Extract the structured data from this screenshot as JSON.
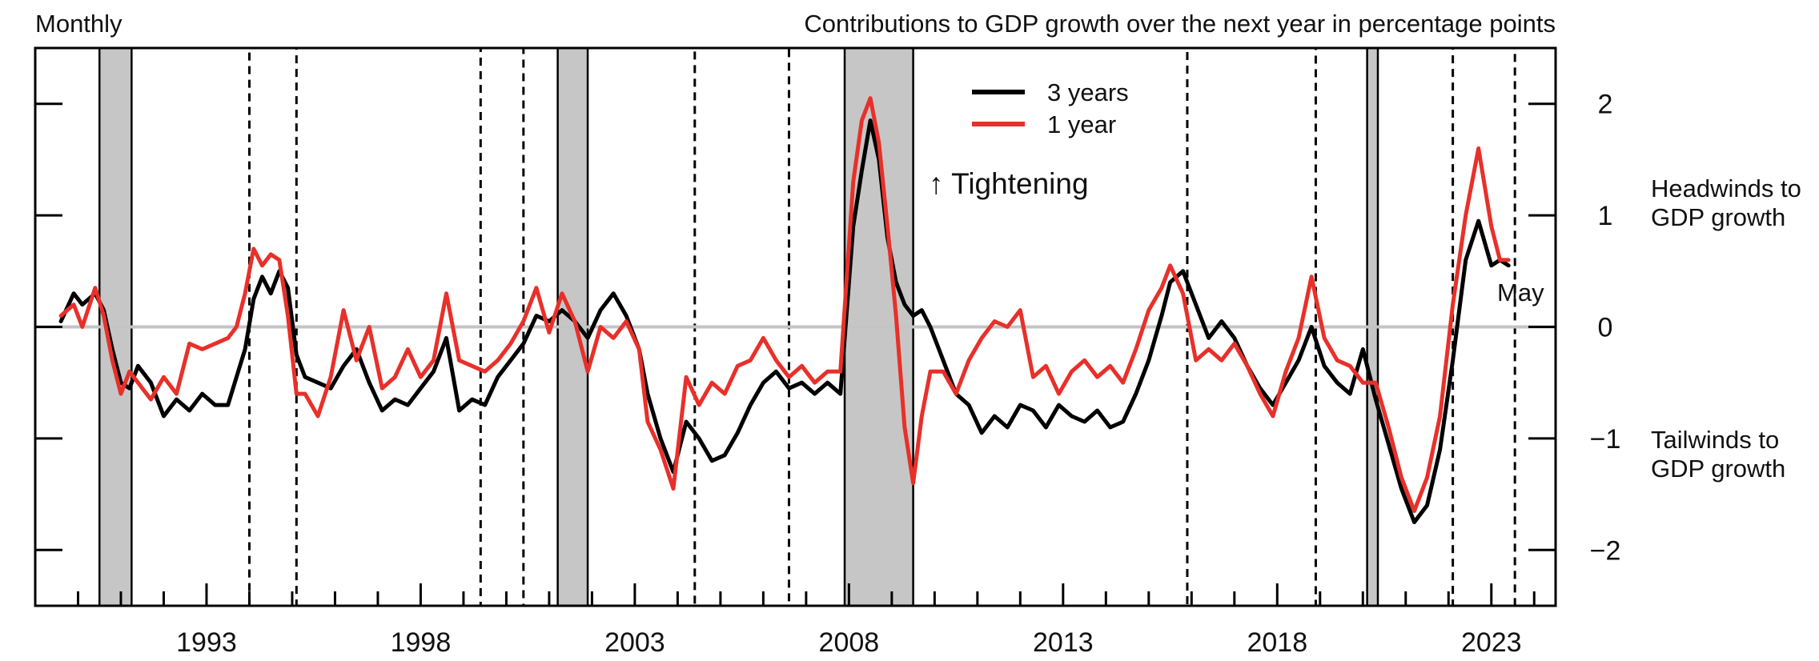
{
  "chart_data": {
    "type": "line",
    "frequency_label": "Monthly",
    "title": "Contributions to GDP growth over the next year in percentage points",
    "ylim": [
      -2.5,
      2.5
    ],
    "xlim": [
      1989.0,
      2024.5
    ],
    "yticks": [
      2,
      1,
      0,
      -1,
      -2
    ],
    "ytick_labels": [
      "2",
      "1",
      "0",
      "−1",
      "−2"
    ],
    "xtick_labels": [
      "1993",
      "1998",
      "2003",
      "2008",
      "2013",
      "2018",
      "2023"
    ],
    "xtick_values": [
      1993,
      1998,
      2003,
      2008,
      2013,
      2018,
      2023
    ],
    "annotations": {
      "tightening": "↑ Tightening",
      "headwinds_line1": "Headwinds to",
      "headwinds_line2": "GDP growth",
      "tailwinds_line1": "Tailwinds to",
      "tailwinds_line2": "GDP growth",
      "end_label": "May"
    },
    "recessions": [
      [
        1990.5,
        1991.25
      ],
      [
        2001.2,
        2001.9
      ],
      [
        2007.9,
        2009.5
      ],
      [
        2020.1,
        2020.35
      ]
    ],
    "tightening_periods": [
      [
        1994.0,
        1995.1
      ],
      [
        1999.4,
        2000.4
      ],
      [
        2004.4,
        2006.6
      ],
      [
        2015.9,
        2018.9
      ],
      [
        2022.1,
        2023.55
      ]
    ],
    "series": [
      {
        "name": "3 years",
        "color": "#000000",
        "x": [
          1989.6,
          1989.9,
          1990.1,
          1990.4,
          1990.6,
          1990.8,
          1991.0,
          1991.2,
          1991.4,
          1991.7,
          1992.0,
          1992.3,
          1992.6,
          1992.9,
          1993.2,
          1993.5,
          1993.7,
          1993.9,
          1994.1,
          1994.3,
          1994.5,
          1994.7,
          1994.9,
          1995.1,
          1995.3,
          1995.6,
          1995.9,
          1996.2,
          1996.5,
          1996.8,
          1997.1,
          1997.4,
          1997.7,
          1998.0,
          1998.3,
          1998.6,
          1998.9,
          1999.2,
          1999.5,
          1999.8,
          2000.1,
          2000.4,
          2000.7,
          2001.0,
          2001.3,
          2001.6,
          2001.9,
          2002.2,
          2002.5,
          2002.8,
          2003.1,
          2003.3,
          2003.6,
          2003.9,
          2004.2,
          2004.5,
          2004.8,
          2005.1,
          2005.4,
          2005.7,
          2006.0,
          2006.3,
          2006.6,
          2006.9,
          2007.2,
          2007.5,
          2007.8,
          2008.1,
          2008.3,
          2008.5,
          2008.7,
          2008.9,
          2009.1,
          2009.3,
          2009.5,
          2009.7,
          2009.9,
          2010.2,
          2010.5,
          2010.8,
          2011.1,
          2011.4,
          2011.7,
          2012.0,
          2012.3,
          2012.6,
          2012.9,
          2013.2,
          2013.5,
          2013.8,
          2014.1,
          2014.4,
          2014.7,
          2015.0,
          2015.3,
          2015.5,
          2015.8,
          2016.1,
          2016.4,
          2016.7,
          2017.0,
          2017.3,
          2017.6,
          2017.9,
          2018.2,
          2018.5,
          2018.8,
          2019.1,
          2019.4,
          2019.7,
          2020.0,
          2020.3,
          2020.6,
          2020.9,
          2021.2,
          2021.5,
          2021.8,
          2022.1,
          2022.4,
          2022.7,
          2023.0,
          2023.2,
          2023.4
        ],
        "values": [
          0.05,
          0.3,
          0.2,
          0.3,
          0.15,
          -0.2,
          -0.5,
          -0.55,
          -0.35,
          -0.5,
          -0.8,
          -0.65,
          -0.75,
          -0.6,
          -0.7,
          -0.7,
          -0.45,
          -0.2,
          0.25,
          0.45,
          0.3,
          0.5,
          0.35,
          -0.25,
          -0.45,
          -0.5,
          -0.55,
          -0.35,
          -0.2,
          -0.5,
          -0.75,
          -0.65,
          -0.7,
          -0.55,
          -0.4,
          -0.1,
          -0.75,
          -0.65,
          -0.7,
          -0.45,
          -0.3,
          -0.15,
          0.1,
          0.05,
          0.15,
          0.05,
          -0.1,
          0.15,
          0.3,
          0.1,
          -0.2,
          -0.6,
          -1.0,
          -1.3,
          -0.85,
          -1.0,
          -1.2,
          -1.15,
          -0.95,
          -0.7,
          -0.5,
          -0.4,
          -0.55,
          -0.5,
          -0.6,
          -0.5,
          -0.6,
          0.9,
          1.4,
          1.85,
          1.5,
          0.8,
          0.4,
          0.2,
          0.1,
          0.15,
          0.0,
          -0.3,
          -0.6,
          -0.7,
          -0.95,
          -0.8,
          -0.9,
          -0.7,
          -0.75,
          -0.9,
          -0.7,
          -0.8,
          -0.85,
          -0.75,
          -0.9,
          -0.85,
          -0.6,
          -0.3,
          0.1,
          0.4,
          0.5,
          0.2,
          -0.1,
          0.05,
          -0.1,
          -0.35,
          -0.55,
          -0.7,
          -0.5,
          -0.3,
          0.0,
          -0.35,
          -0.5,
          -0.6,
          -0.2,
          -0.65,
          -1.05,
          -1.45,
          -1.75,
          -1.6,
          -1.1,
          -0.3,
          0.6,
          0.95,
          0.55,
          0.6,
          0.55
        ]
      },
      {
        "name": "1 year",
        "color": "#e8302a",
        "x": [
          1989.6,
          1989.9,
          1990.1,
          1990.4,
          1990.6,
          1990.8,
          1991.0,
          1991.2,
          1991.4,
          1991.7,
          1992.0,
          1992.3,
          1992.6,
          1992.9,
          1993.2,
          1993.5,
          1993.7,
          1993.9,
          1994.1,
          1994.3,
          1994.5,
          1994.7,
          1994.9,
          1995.1,
          1995.3,
          1995.6,
          1995.9,
          1996.2,
          1996.5,
          1996.8,
          1997.1,
          1997.4,
          1997.7,
          1998.0,
          1998.3,
          1998.6,
          1998.9,
          1999.2,
          1999.5,
          1999.8,
          2000.1,
          2000.4,
          2000.7,
          2001.0,
          2001.3,
          2001.6,
          2001.9,
          2002.2,
          2002.5,
          2002.8,
          2003.1,
          2003.3,
          2003.6,
          2003.9,
          2004.2,
          2004.5,
          2004.8,
          2005.1,
          2005.4,
          2005.7,
          2006.0,
          2006.3,
          2006.6,
          2006.9,
          2007.2,
          2007.5,
          2007.8,
          2008.1,
          2008.3,
          2008.5,
          2008.7,
          2008.9,
          2009.1,
          2009.3,
          2009.5,
          2009.7,
          2009.9,
          2010.2,
          2010.5,
          2010.8,
          2011.1,
          2011.4,
          2011.7,
          2012.0,
          2012.3,
          2012.6,
          2012.9,
          2013.2,
          2013.5,
          2013.8,
          2014.1,
          2014.4,
          2014.7,
          2015.0,
          2015.3,
          2015.5,
          2015.8,
          2016.1,
          2016.4,
          2016.7,
          2017.0,
          2017.3,
          2017.6,
          2017.9,
          2018.2,
          2018.5,
          2018.8,
          2019.1,
          2019.4,
          2019.7,
          2020.0,
          2020.3,
          2020.6,
          2020.9,
          2021.2,
          2021.5,
          2021.8,
          2022.1,
          2022.4,
          2022.7,
          2023.0,
          2023.2,
          2023.4
        ],
        "values": [
          0.1,
          0.2,
          0.0,
          0.35,
          0.1,
          -0.3,
          -0.6,
          -0.4,
          -0.5,
          -0.65,
          -0.45,
          -0.6,
          -0.15,
          -0.2,
          -0.15,
          -0.1,
          0.0,
          0.3,
          0.7,
          0.55,
          0.65,
          0.6,
          0.1,
          -0.6,
          -0.6,
          -0.8,
          -0.45,
          0.15,
          -0.3,
          0.0,
          -0.55,
          -0.45,
          -0.2,
          -0.45,
          -0.3,
          0.3,
          -0.3,
          -0.35,
          -0.4,
          -0.3,
          -0.15,
          0.05,
          0.35,
          -0.05,
          0.3,
          0.05,
          -0.4,
          0.0,
          -0.1,
          0.05,
          -0.2,
          -0.85,
          -1.1,
          -1.45,
          -0.45,
          -0.7,
          -0.5,
          -0.6,
          -0.35,
          -0.3,
          -0.1,
          -0.3,
          -0.45,
          -0.35,
          -0.5,
          -0.4,
          -0.4,
          1.3,
          1.85,
          2.05,
          1.65,
          0.9,
          0.1,
          -0.9,
          -1.4,
          -0.8,
          -0.4,
          -0.4,
          -0.6,
          -0.3,
          -0.1,
          0.05,
          0.0,
          0.15,
          -0.45,
          -0.35,
          -0.6,
          -0.4,
          -0.3,
          -0.45,
          -0.35,
          -0.5,
          -0.2,
          0.15,
          0.35,
          0.55,
          0.3,
          -0.3,
          -0.2,
          -0.3,
          -0.15,
          -0.35,
          -0.6,
          -0.8,
          -0.4,
          -0.1,
          0.45,
          -0.1,
          -0.3,
          -0.35,
          -0.5,
          -0.5,
          -0.9,
          -1.35,
          -1.65,
          -1.35,
          -0.8,
          0.2,
          1.0,
          1.6,
          0.9,
          0.6,
          0.6
        ]
      }
    ]
  }
}
